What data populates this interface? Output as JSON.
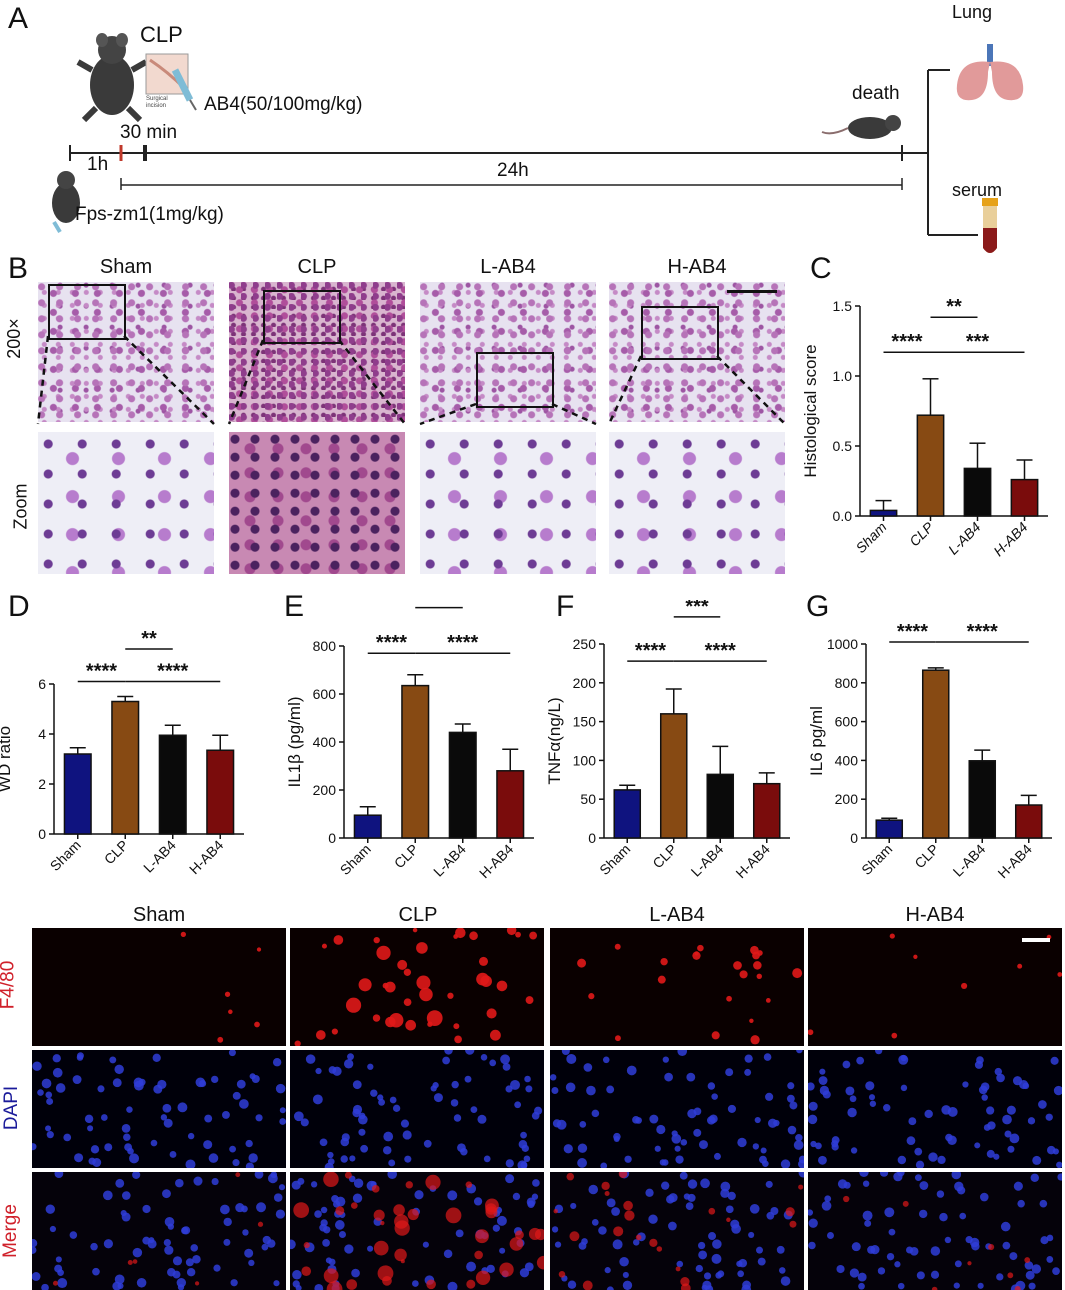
{
  "panel_labels": {
    "A": "A",
    "B": "B",
    "C": "C",
    "D": "D",
    "E": "E",
    "F": "F",
    "G": "G"
  },
  "schematic": {
    "clp": "CLP",
    "ab4": "AB4(50/100mg/kg)",
    "t30": "30 min",
    "t1h": "1h",
    "t24h": "24h",
    "death": "death",
    "fps": "Fps-zm1(1mg/kg)",
    "lung": "Lung",
    "serum": "serum",
    "incision": "Surgical incision"
  },
  "histology": {
    "groups": [
      "Sham",
      "CLP",
      "L-AB4",
      "H-AB4"
    ],
    "row_labels": [
      "200×",
      "Zoom"
    ]
  },
  "if_panel": {
    "groups": [
      "Sham",
      "CLP",
      "L-AB4",
      "H-AB4"
    ],
    "row_labels": [
      "F4/80",
      "DAPI",
      "Merge"
    ],
    "colors": {
      "F4/80": "#d0202a",
      "DAPI": "#1a1a9a",
      "Merge": "#d0202a"
    }
  },
  "colors": {
    "Sham": "#0f137f",
    "CLP": "#874a13",
    "L-AB4": "#0a0a0a",
    "H-AB4": "#7a0c0c"
  },
  "chart_data": [
    {
      "id": "C",
      "type": "bar",
      "categories": [
        "Sham",
        "CLP",
        "L-AB4",
        "H-AB4"
      ],
      "values": [
        0.04,
        0.72,
        0.34,
        0.26
      ],
      "errors": [
        0.07,
        0.26,
        0.18,
        0.14
      ],
      "ylabel": "Histological score",
      "ylim": [
        0,
        1.5
      ],
      "yticks": [
        0.0,
        0.5,
        1.0,
        1.5
      ],
      "ytick_labels": [
        "0.0",
        "0.5",
        "1.0",
        "1.5"
      ],
      "italic_ticks": true,
      "significance": [
        {
          "from": 0,
          "to": 1,
          "label": "****",
          "level": 1.17
        },
        {
          "from": 1,
          "to": 3,
          "label": "***",
          "level": 1.17
        },
        {
          "from": 1,
          "to": 2,
          "label": "**",
          "level": 1.42
        }
      ]
    },
    {
      "id": "D",
      "type": "bar",
      "categories": [
        "Sham",
        "CLP",
        "L-AB4",
        "H-AB4"
      ],
      "values": [
        3.2,
        5.3,
        3.95,
        3.35
      ],
      "errors": [
        0.25,
        0.2,
        0.4,
        0.6
      ],
      "ylabel": "WD ratio",
      "ylim": [
        0,
        6
      ],
      "yticks": [
        0,
        2,
        4,
        6
      ],
      "ytick_labels": [
        "0",
        "2",
        "4",
        "6"
      ],
      "significance": [
        {
          "from": 0,
          "to": 1,
          "label": "****",
          "level": 6.1
        },
        {
          "from": 1,
          "to": 3,
          "label": "****",
          "level": 6.1
        },
        {
          "from": 1,
          "to": 2,
          "label": "**",
          "level": 7.4
        }
      ]
    },
    {
      "id": "E",
      "type": "bar",
      "categories": [
        "Sham",
        "CLP",
        "L-AB4",
        "H-AB4"
      ],
      "values": [
        95,
        635,
        440,
        280
      ],
      "errors": [
        35,
        45,
        35,
        90
      ],
      "ylabel": "IL1β  (pg/ml)",
      "ylim": [
        0,
        800
      ],
      "yticks": [
        0,
        200,
        400,
        600,
        800
      ],
      "ytick_labels": [
        "0",
        "200",
        "400",
        "600",
        "800"
      ],
      "significance": [
        {
          "from": 0,
          "to": 1,
          "label": "****",
          "level": 770
        },
        {
          "from": 1,
          "to": 3,
          "label": "****",
          "level": 770
        },
        {
          "from": 1,
          "to": 2,
          "label": "***",
          "level": 960
        }
      ]
    },
    {
      "id": "F",
      "type": "bar",
      "categories": [
        "Sham",
        "CLP",
        "L-AB4",
        "H-AB4"
      ],
      "values": [
        62,
        160,
        82,
        70
      ],
      "errors": [
        6,
        32,
        36,
        14
      ],
      "ylabel": "TNFα(ng/L)",
      "ylim": [
        0,
        250
      ],
      "yticks": [
        0,
        50,
        100,
        150,
        200,
        250
      ],
      "ytick_labels": [
        "0",
        "50",
        "100",
        "150",
        "200",
        "250"
      ],
      "significance": [
        {
          "from": 0,
          "to": 1,
          "label": "****",
          "level": 228
        },
        {
          "from": 1,
          "to": 3,
          "label": "****",
          "level": 228
        },
        {
          "from": 1,
          "to": 2,
          "label": "***",
          "level": 285
        }
      ]
    },
    {
      "id": "G",
      "type": "bar",
      "categories": [
        "Sham",
        "CLP",
        "L-AB4",
        "H-AB4"
      ],
      "values": [
        92,
        865,
        398,
        170
      ],
      "errors": [
        10,
        12,
        55,
        50
      ],
      "ylabel": "IL6 pg/ml",
      "ylim": [
        0,
        1000
      ],
      "yticks": [
        0,
        200,
        400,
        600,
        800,
        1000
      ],
      "ytick_labels": [
        "0",
        "200",
        "400",
        "600",
        "800",
        "1000"
      ],
      "significance": [
        {
          "from": 0,
          "to": 1,
          "label": "****",
          "level": 1010
        },
        {
          "from": 1,
          "to": 3,
          "label": "****",
          "level": 1010
        },
        {
          "from": 1,
          "to": 2,
          "label": "****",
          "level": 1240
        }
      ]
    }
  ]
}
